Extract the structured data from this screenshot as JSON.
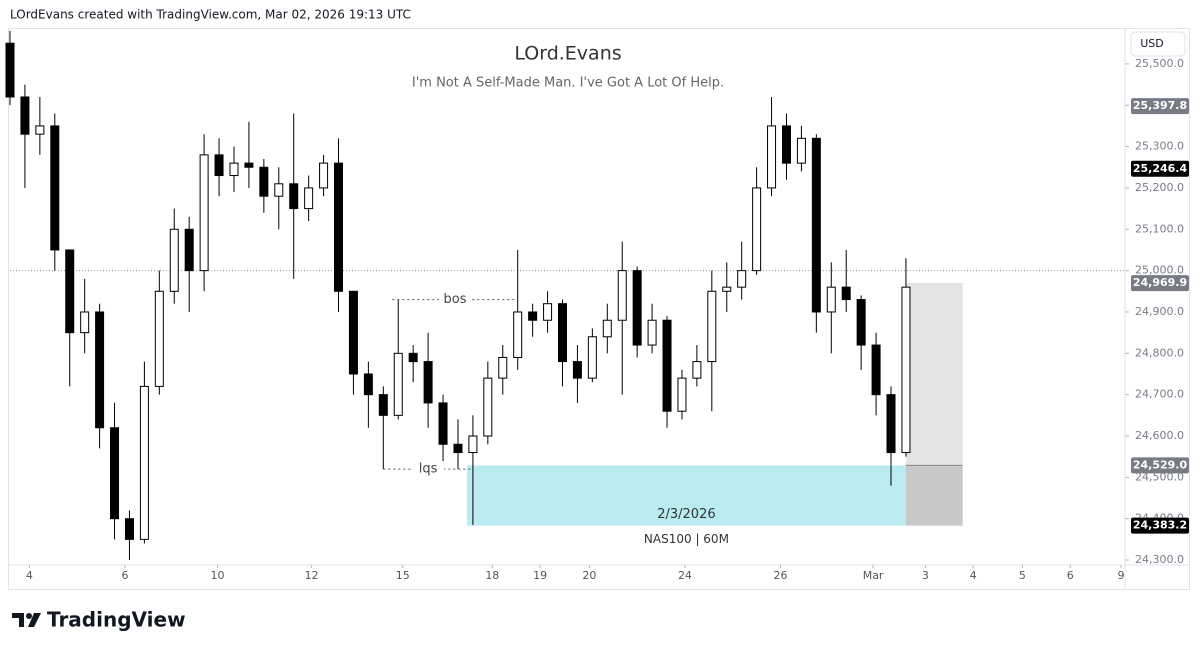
{
  "header": "LOrdEvans created with TradingView.com, Mar 02, 2026 19:13 UTC",
  "brand": "TradingView",
  "chart_data": {
    "type": "candlestick",
    "title": "LOrd.Evans",
    "subtitle": "I'm Not A Self-Made Man. I've Got A Lot Of Help.",
    "currency": "USD",
    "instrument": "NAS100 | 60M",
    "up_color": "#ffffff",
    "down_color": "#000000",
    "x": [
      0,
      1,
      2,
      3,
      4,
      5,
      6,
      7,
      8,
      9,
      10,
      11,
      12,
      13,
      14,
      15,
      16,
      17,
      18,
      19,
      20,
      21,
      22,
      23,
      24,
      25,
      26,
      27,
      28,
      29,
      30,
      31,
      32,
      33,
      34,
      35,
      36,
      37,
      38,
      39,
      40,
      41,
      42,
      43,
      44,
      45,
      46,
      47,
      48,
      49,
      50,
      51,
      52,
      53,
      54,
      55,
      56,
      57,
      58,
      59,
      60
    ],
    "open": [
      25550,
      25420,
      25330,
      25350,
      25050,
      24850,
      24900,
      24620,
      24400,
      24350,
      24720,
      24950,
      25100,
      25000,
      25280,
      25230,
      25260,
      25250,
      25180,
      25210,
      25150,
      25200,
      25260,
      24950,
      24750,
      24700,
      24650,
      24800,
      24780,
      24680,
      24580,
      24560,
      24600,
      24740,
      24790,
      24900,
      24880,
      24920,
      24780,
      24740,
      24840,
      24880,
      25000,
      24820,
      24880,
      24660,
      24740,
      24780,
      24950,
      24960,
      25000,
      25200,
      25350,
      25260,
      25320,
      24900,
      24960,
      24930,
      24820,
      24700,
      24560
    ],
    "high": [
      25580,
      25450,
      25420,
      25380,
      25050,
      24980,
      24920,
      24680,
      24420,
      24780,
      25000,
      25150,
      25130,
      25330,
      25320,
      25300,
      25360,
      25270,
      25250,
      25380,
      25230,
      25280,
      25320,
      24950,
      24780,
      24720,
      24930,
      24820,
      24850,
      24700,
      24640,
      24650,
      24780,
      24820,
      25050,
      24920,
      24950,
      24930,
      24820,
      24860,
      24920,
      25070,
      25010,
      24920,
      24890,
      24760,
      24820,
      25000,
      25020,
      25070,
      25250,
      25420,
      25380,
      25350,
      25330,
      25020,
      25050,
      24940,
      24850,
      24720,
      25030
    ],
    "low": [
      25400,
      25200,
      25280,
      25000,
      24720,
      24800,
      24570,
      24350,
      24300,
      24340,
      24700,
      24920,
      24900,
      24950,
      25180,
      25190,
      25200,
      25140,
      25100,
      24980,
      25120,
      25180,
      24900,
      24700,
      24620,
      24520,
      24640,
      24730,
      24620,
      24530,
      24520,
      24385,
      24580,
      24700,
      24760,
      24840,
      24850,
      24720,
      24680,
      24730,
      24800,
      24700,
      24790,
      24800,
      24620,
      24640,
      24720,
      24660,
      24900,
      24930,
      24990,
      25180,
      25220,
      25240,
      24850,
      24800,
      24900,
      24760,
      24650,
      24480,
      24550
    ],
    "close": [
      25420,
      25330,
      25350,
      25050,
      24850,
      24900,
      24620,
      24400,
      24350,
      24720,
      24950,
      25100,
      25000,
      25280,
      25230,
      25260,
      25250,
      25180,
      25210,
      25150,
      25200,
      25260,
      24950,
      24750,
      24700,
      24650,
      24800,
      24780,
      24680,
      24580,
      24560,
      24600,
      24740,
      24790,
      24900,
      24880,
      24920,
      24780,
      24740,
      24840,
      24880,
      25000,
      24820,
      24880,
      24660,
      24740,
      24780,
      24950,
      24960,
      25000,
      25200,
      25350,
      25260,
      25320,
      24900,
      24960,
      24930,
      24820,
      24700,
      24560,
      24960
    ],
    "xlim": [
      0,
      74.67
    ],
    "ylim": [
      24288,
      25582
    ],
    "xticks": [
      {
        "value": 1.3,
        "label": "4"
      },
      {
        "value": 7.7,
        "label": "6"
      },
      {
        "value": 13.9,
        "label": "10"
      },
      {
        "value": 20.2,
        "label": "12"
      },
      {
        "value": 26.3,
        "label": "15"
      },
      {
        "value": 32.3,
        "label": "18"
      },
      {
        "value": 35.5,
        "label": "19"
      },
      {
        "value": 38.8,
        "label": "20"
      },
      {
        "value": 45.2,
        "label": "24"
      },
      {
        "value": 51.6,
        "label": "26"
      },
      {
        "value": 57.8,
        "label": "Mar"
      },
      {
        "value": 61.3,
        "label": "3"
      },
      {
        "value": 64.5,
        "label": "4"
      },
      {
        "value": 67.8,
        "label": "5"
      },
      {
        "value": 71,
        "label": "6"
      },
      {
        "value": 74.4,
        "label": "9"
      }
    ],
    "yticks": [
      {
        "value": 24300,
        "label": "24,300.0"
      },
      {
        "value": 24400,
        "label": "24,400.0"
      },
      {
        "value": 24500,
        "label": "24,500.0"
      },
      {
        "value": 24600,
        "label": "24,600.0"
      },
      {
        "value": 24700,
        "label": "24,700.0"
      },
      {
        "value": 24800,
        "label": "24,800.0"
      },
      {
        "value": 24900,
        "label": "24,900.0"
      },
      {
        "value": 25000,
        "label": "25,000.0"
      },
      {
        "value": 25100,
        "label": "25,100.0"
      },
      {
        "value": 25200,
        "label": "25,200.0"
      },
      {
        "value": 25300,
        "label": "25,300.0"
      },
      {
        "value": 25400,
        "label": "25,400.0"
      },
      {
        "value": 25500,
        "label": "25,500.0"
      }
    ],
    "reference_line": 25000,
    "price_labels": [
      {
        "value": 25397.8,
        "label": "25,397.8",
        "color": "#787b86"
      },
      {
        "value": 25246.4,
        "label": "25,246.4",
        "color": "#000000"
      },
      {
        "value": 24969.9,
        "label": "24,969.9",
        "color": "#787b86"
      },
      {
        "value": 24529.0,
        "label": "24,529.0",
        "color": "#787b86"
      },
      {
        "value": 24383.2,
        "label": "24,383.2",
        "color": "#000000"
      }
    ],
    "annotations": [
      {
        "text": "bos",
        "level": 24930,
        "x0": 25.6,
        "x1": 34
      },
      {
        "text": "lqs",
        "level": 24520,
        "x0": 25,
        "x1": 31
      }
    ],
    "zones": [
      {
        "x0": 30.6,
        "x1": 60,
        "y0": 24383.2,
        "y1": 24529,
        "color": "#b9ebf0",
        "label": "2/3/2026"
      },
      {
        "x0": 60,
        "x1": 63.8,
        "y0": 24529,
        "y1": 24969.9,
        "color": "#e3e3e3"
      },
      {
        "x0": 60,
        "x1": 63.8,
        "y0": 24383.2,
        "y1": 24529,
        "color": "#c8c8c8"
      }
    ]
  }
}
